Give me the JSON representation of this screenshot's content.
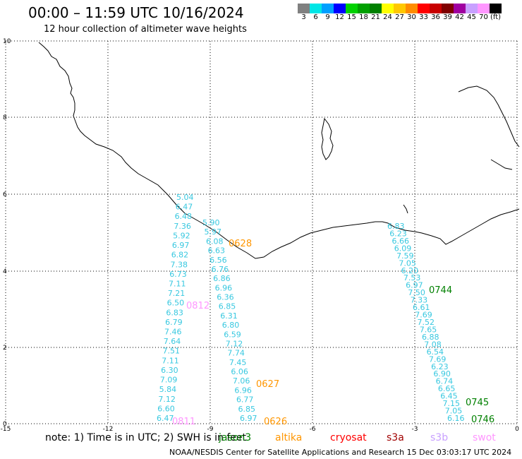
{
  "title": "00:00 – 11:59 UTC 10/16/2024",
  "subtitle": "12 hour collection of altimeter wave heights",
  "legend": {
    "colors": [
      "#808080",
      "#00e6e6",
      "#00a0ff",
      "#0000ff",
      "#00d200",
      "#00a000",
      "#008000",
      "#ffff00",
      "#ffc800",
      "#ff8c00",
      "#ff0000",
      "#c80000",
      "#800000",
      "#a000a0",
      "#c8a0ff",
      "#ff96ff",
      "#000000"
    ],
    "labels": [
      "3",
      "6",
      "9",
      "12",
      "15",
      "18",
      "21",
      "24",
      "27",
      "30",
      "33",
      "36",
      "39",
      "42",
      "45",
      "70",
      "(ft)"
    ]
  },
  "axes": {
    "x_ticks": [
      "-15",
      "-12",
      "-9",
      "-6",
      "-3",
      "0"
    ],
    "y_ticks": [
      "10",
      "8",
      "6",
      "4",
      "2",
      "0"
    ]
  },
  "tracks": [
    {
      "name": "track-a",
      "values": [
        "5.04",
        "6.47",
        "6.48",
        "7.36",
        "5.92",
        "6.97",
        "6.82",
        "7.38",
        "6.73",
        "7.11",
        "7.21",
        "6.50",
        "6.83",
        "6.79",
        "7.46",
        "7.64",
        "7.51",
        "7.11",
        "6.30",
        "7.09",
        "5.84",
        "7.12",
        "6.60",
        "6.47"
      ]
    },
    {
      "name": "track-b",
      "values": [
        "5.90",
        "5.97",
        "6.08",
        "6.63",
        "6.56",
        "6.76",
        "6.86",
        "6.96",
        "6.36",
        "6.85",
        "6.31",
        "6.80",
        "6.59",
        "7.12",
        "7.74",
        "7.45",
        "6.06",
        "7.06",
        "6.96",
        "6.77",
        "6.85",
        "6.97"
      ]
    },
    {
      "name": "track-c",
      "values": [
        "6.83",
        "6.23",
        "6.66",
        "6.09",
        "7.59",
        "7.05",
        "6.20",
        "7.53",
        "6.97",
        "7.50",
        "7.33",
        "6.61",
        "7.69",
        "7.52",
        "7.65",
        "6.88",
        "7.08",
        "6.54",
        "7.69",
        "6.23",
        "6.90",
        "6.74",
        "6.65",
        "6.45",
        "7.15",
        "7.05",
        "6.16"
      ]
    }
  ],
  "time_labels": [
    {
      "text": "0628",
      "color": "#ff9600"
    },
    {
      "text": "0812",
      "color": "#ff96ff"
    },
    {
      "text": "0627",
      "color": "#ff9600"
    },
    {
      "text": "0811",
      "color": "#ff96ff"
    },
    {
      "text": "0626",
      "color": "#ff9600"
    },
    {
      "text": "0744",
      "color": "#008000"
    },
    {
      "text": "0745",
      "color": "#008000"
    },
    {
      "text": "0746",
      "color": "#008000"
    }
  ],
  "note": "note:  1) Time is in UTC;  2) SWH is in feet",
  "satellites": [
    {
      "name": "jason3",
      "color": "#008000"
    },
    {
      "name": "altika",
      "color": "#ff9600"
    },
    {
      "name": "cryosat",
      "color": "#ff0000"
    },
    {
      "name": "s3a",
      "color": "#a00000"
    },
    {
      "name": "s3b",
      "color": "#c8a0ff"
    },
    {
      "name": "swot",
      "color": "#ff96ff"
    }
  ],
  "credit": "NOAA/NESDIS Center for Satellite Applications and Research   15 Dec 03:03:17 UTC 2024"
}
